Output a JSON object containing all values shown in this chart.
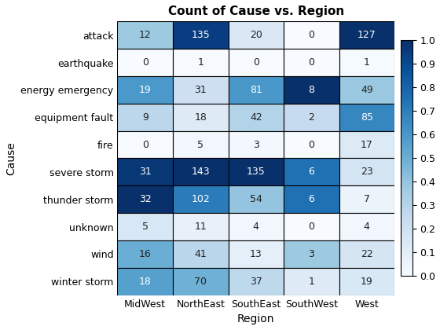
{
  "title": "Count of Cause vs. Region",
  "xlabel": "Region",
  "ylabel": "Cause",
  "columns": [
    "MidWest",
    "NorthEast",
    "SouthEast",
    "SouthWest",
    "West"
  ],
  "rows": [
    "attack",
    "earthquake",
    "energy emergency",
    "equipment fault",
    "fire",
    "severe storm",
    "thunder storm",
    "unknown",
    "wind",
    "winter storm"
  ],
  "data": [
    [
      12,
      135,
      20,
      0,
      127
    ],
    [
      0,
      1,
      0,
      0,
      1
    ],
    [
      19,
      31,
      81,
      8,
      49
    ],
    [
      9,
      18,
      42,
      2,
      85
    ],
    [
      0,
      5,
      3,
      0,
      17
    ],
    [
      31,
      143,
      135,
      6,
      23
    ],
    [
      32,
      102,
      54,
      6,
      7
    ],
    [
      5,
      11,
      4,
      0,
      4
    ],
    [
      16,
      41,
      13,
      3,
      22
    ],
    [
      18,
      70,
      37,
      1,
      19
    ]
  ],
  "colormap": "Blues",
  "colorbar_ticks": [
    0,
    0.1,
    0.2,
    0.3,
    0.4,
    0.5,
    0.6,
    0.7,
    0.8,
    0.9,
    1.0
  ],
  "text_threshold": 0.5,
  "dark_text_color": "#222222",
  "light_text_color": "#ffffff",
  "title_fontsize": 11,
  "label_fontsize": 10,
  "tick_fontsize": 9,
  "cell_fontsize": 9,
  "fig_width": 5.6,
  "fig_height": 4.2,
  "fig_dpi": 100
}
